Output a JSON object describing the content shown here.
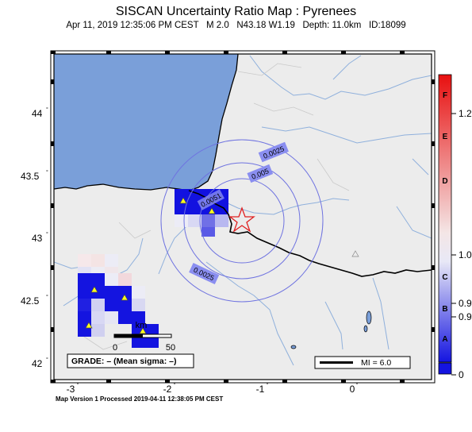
{
  "header": {
    "title": "SISCAN Uncertainty Ratio Map : Pyrenees",
    "subtitle": "Apr 11, 2019 12:35:06 PM CEST   M 2.0   N43.18 W1.19   Depth: 11.0km   ID:18099"
  },
  "map": {
    "lat_ticks": [
      "44",
      "43.5",
      "43",
      "42.5",
      "42"
    ],
    "lon_ticks": [
      "-3",
      "-2",
      "-1",
      "0"
    ],
    "contour_labels": [
      "0.0025",
      "0.005",
      "0.0051",
      "0.0025"
    ],
    "grade_text": "GRADE: – (Mean sigma: –)",
    "scale": {
      "unit": "km",
      "start": "0",
      "end": "50"
    },
    "mi_legend": "MI = 6.0",
    "epicenter": {
      "lat": 43.18,
      "lon": -1.19,
      "symbol": "red-star"
    },
    "colors": {
      "ocean": "#7a9fd9",
      "land": "#ececec",
      "contour": "#6f73e0",
      "cell_high": "#1010e0",
      "epicenter": "#e02020"
    }
  },
  "colorbar": {
    "letters": [
      "F",
      "E",
      "D",
      "C",
      "B",
      "A"
    ],
    "values": [
      "1.2",
      "1.0",
      "0.9",
      "0.9",
      "0"
    ]
  },
  "footer": "Map Version 1 Processed 2019-04-11 12:38:05 PM CEST"
}
